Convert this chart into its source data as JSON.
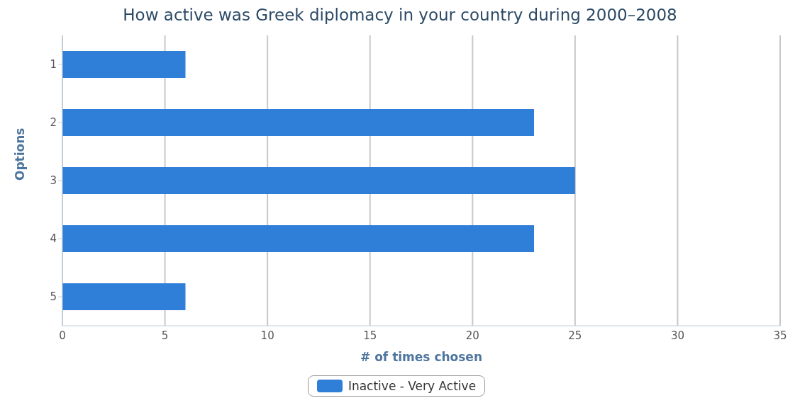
{
  "chart_data": {
    "type": "bar",
    "orientation": "horizontal",
    "title": "How active was Greek diplomacy in your country during 2000–2008",
    "xlabel": "# of times chosen",
    "ylabel": "Options",
    "categories": [
      "1",
      "2",
      "3",
      "4",
      "5"
    ],
    "series": [
      {
        "name": "Inactive - Very Active",
        "color": "#2f7ed8",
        "values": [
          6,
          23,
          25,
          23,
          6
        ]
      }
    ],
    "xlim": [
      0,
      35
    ],
    "xticks": [
      0,
      5,
      10,
      15,
      20,
      25,
      30,
      35
    ],
    "grid": "x",
    "legend": "bottom"
  }
}
